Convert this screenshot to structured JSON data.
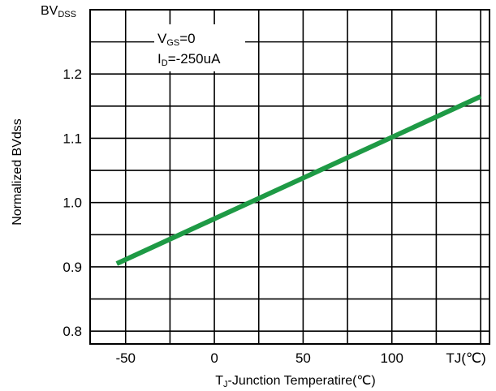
{
  "chart_data": {
    "type": "line",
    "title": "",
    "ylabel": "Normalized BVdss",
    "y_unit_label": {
      "main": "BV",
      "sub": "DSS"
    },
    "xlabel": {
      "main": "T",
      "sub": "J",
      "rest": "-Junction Temperatire(℃)"
    },
    "x_unit_label": "TJ(℃)",
    "xlim": [
      -70,
      155
    ],
    "ylim": [
      0.78,
      1.3
    ],
    "x_ticks": [
      -50,
      0,
      50,
      100
    ],
    "x_tick_labels": [
      "-50",
      "0",
      "50",
      "100"
    ],
    "y_ticks": [
      0.8,
      0.9,
      1.0,
      1.1,
      1.2
    ],
    "y_tick_labels": [
      "0.8",
      "0.9",
      "1.0",
      "1.1",
      "1.2"
    ],
    "grid": true,
    "annotations": [
      {
        "main": "V",
        "sub": "GS",
        "rest": "=0"
      },
      {
        "main": "I",
        "sub": "D",
        "rest": "=-250uA"
      }
    ],
    "series": [
      {
        "color": "#1e9a45",
        "x": [
          -55,
          150
        ],
        "y": [
          0.905,
          1.165
        ]
      }
    ]
  }
}
